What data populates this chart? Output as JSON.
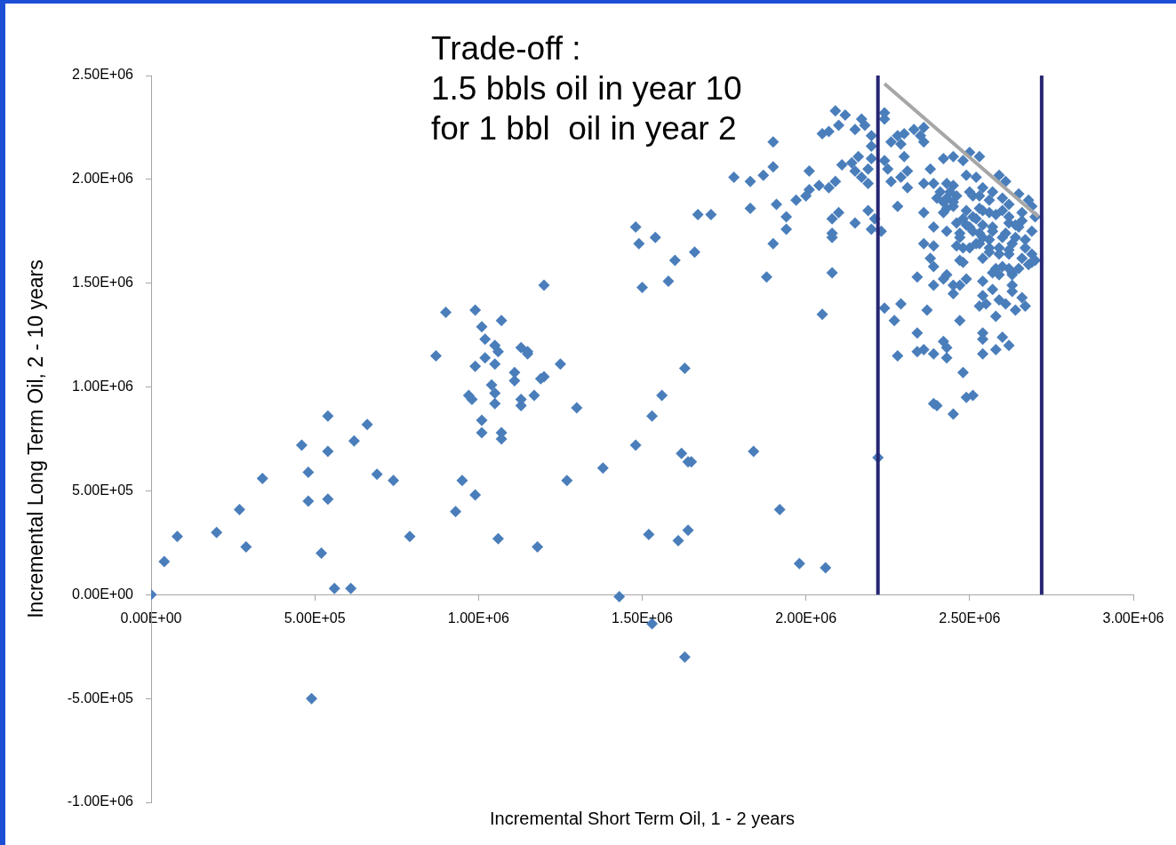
{
  "chart_data": {
    "type": "scatter",
    "title": "Trade-off :\n1.5 bbls oil in year 10\nfor 1 bbl  oil in year 2",
    "xlabel": "Incremental Short Term Oil, 1 - 2 years",
    "ylabel": "Incremental Long Term Oil, 2 - 10 years",
    "xlim": [
      0,
      3000000
    ],
    "ylim": [
      -1000000,
      2500000
    ],
    "xticks": [
      {
        "value": 0,
        "label": "0.00E+00"
      },
      {
        "value": 500000,
        "label": "5.00E+05"
      },
      {
        "value": 1000000,
        "label": "1.00E+06"
      },
      {
        "value": 1500000,
        "label": "1.50E+06"
      },
      {
        "value": 2000000,
        "label": "2.00E+06"
      },
      {
        "value": 2500000,
        "label": "2.50E+06"
      },
      {
        "value": 3000000,
        "label": "3.00E+06"
      }
    ],
    "yticks": [
      {
        "value": -1000000,
        "label": "-1.00E+06"
      },
      {
        "value": -500000,
        "label": "-5.00E+05"
      },
      {
        "value": 0,
        "label": "0.00E+00"
      },
      {
        "value": 500000,
        "label": "5.00E+05"
      },
      {
        "value": 1000000,
        "label": "1.00E+06"
      },
      {
        "value": 1500000,
        "label": "1.50E+06"
      },
      {
        "value": 2000000,
        "label": "2.00E+06"
      },
      {
        "value": 2500000,
        "label": "2.50E+06"
      }
    ],
    "marker": "diamond",
    "series": [
      {
        "color": "#4a7ebb",
        "x": [
          0,
          40000,
          80000,
          200000,
          270000,
          290000,
          340000,
          460000,
          480000,
          480000,
          540000,
          540000,
          540000,
          520000,
          560000,
          610000,
          620000,
          660000,
          690000,
          740000,
          790000,
          490000,
          930000,
          950000,
          990000,
          1060000,
          1180000,
          1480000,
          1490000,
          1540000,
          1670000,
          1710000,
          1660000,
          1600000,
          1580000,
          1500000,
          1200000,
          900000,
          990000,
          1070000,
          1010000,
          1020000,
          1050000,
          1060000,
          1020000,
          1050000,
          990000,
          870000,
          1130000,
          1150000,
          1150000,
          1250000,
          1110000,
          1110000,
          1190000,
          1200000,
          1040000,
          1050000,
          970000,
          980000,
          1050000,
          1130000,
          1130000,
          1170000,
          1300000,
          1010000,
          1010000,
          1070000,
          1070000,
          1630000,
          1560000,
          1530000,
          1480000,
          1380000,
          1270000,
          1620000,
          1640000,
          1650000,
          1840000,
          1520000,
          1610000,
          1640000,
          1430000,
          1530000,
          1630000,
          2090000,
          2120000,
          2100000,
          2170000,
          2180000,
          2150000,
          2050000,
          2070000,
          2200000,
          1900000,
          2200000,
          1900000,
          1780000,
          1830000,
          1870000,
          2010000,
          2110000,
          2140000,
          2160000,
          2150000,
          2190000,
          2170000,
          2190000,
          2200000,
          2040000,
          2090000,
          2070000,
          2010000,
          2000000,
          1970000,
          1830000,
          1910000,
          1940000,
          1940000,
          1900000,
          1880000,
          2080000,
          2100000,
          2150000,
          2190000,
          2200000,
          2080000,
          2080000,
          2080000,
          2050000,
          1920000,
          1980000,
          2060000,
          2220000,
          2240000,
          2240000,
          2330000,
          2360000,
          2350000,
          2360000,
          2300000,
          2280000,
          2290000,
          2260000,
          2300000,
          2240000,
          2250000,
          2310000,
          2290000,
          2260000,
          2310000,
          2280000,
          2380000,
          2360000,
          2390000,
          2420000,
          2450000,
          2480000,
          2500000,
          2530000,
          2490000,
          2590000,
          2610000,
          2650000,
          2680000,
          2700000,
          2430000,
          2450000,
          2410000,
          2430000,
          2460000,
          2500000,
          2530000,
          2560000,
          2600000,
          2620000,
          2660000,
          2690000,
          2360000,
          2420000,
          2450000,
          2480000,
          2510000,
          2540000,
          2580000,
          2620000,
          2650000,
          2690000,
          2390000,
          2430000,
          2470000,
          2500000,
          2530000,
          2570000,
          2600000,
          2630000,
          2670000,
          2360000,
          2390000,
          2480000,
          2520000,
          2560000,
          2590000,
          2620000,
          2660000,
          2380000,
          2470000,
          2540000,
          2700000,
          2230000,
          2210000,
          2480000,
          2390000,
          2340000,
          2390000,
          2430000,
          2420000,
          2450000,
          2490000,
          2450000,
          2470000,
          2540000,
          2570000,
          2540000,
          2530000,
          2550000,
          2590000,
          2610000,
          2630000,
          2630000,
          2660000,
          2670000,
          2640000,
          2580000,
          2290000,
          2240000,
          2370000,
          2270000,
          2470000,
          2340000,
          2420000,
          2430000,
          2540000,
          2540000,
          2600000,
          2620000,
          2280000,
          2340000,
          2360000,
          2390000,
          2430000,
          2540000,
          2580000,
          2480000,
          2390000,
          2400000,
          2490000,
          2510000,
          2450000,
          2580000,
          2620000,
          2650000,
          2680000,
          2590000,
          2630000,
          2520000,
          2540000,
          2570000,
          2510000,
          2450000,
          2430000,
          2490000,
          2530000,
          2560000,
          2600000,
          2620000,
          2660000,
          2520000,
          2540000,
          2570000,
          2510000,
          2540000,
          2560000,
          2610000,
          2640000,
          2670000,
          2620000,
          2590000,
          2560000,
          2470000,
          2460000,
          2500000,
          2600000,
          2690000,
          2570000,
          2630000,
          2490000,
          2460000,
          2420000,
          2400000,
          2640000,
          2690000,
          2530000,
          2440000
        ],
        "values": [
          0,
          160000,
          280000,
          300000,
          410000,
          230000,
          560000,
          720000,
          590000,
          450000,
          860000,
          690000,
          460000,
          200000,
          30000,
          30000,
          740000,
          820000,
          580000,
          550000,
          280000,
          -500000,
          400000,
          550000,
          480000,
          270000,
          230000,
          1770000,
          1690000,
          1720000,
          1830000,
          1830000,
          1650000,
          1610000,
          1510000,
          1480000,
          1490000,
          1360000,
          1370000,
          1320000,
          1290000,
          1230000,
          1200000,
          1170000,
          1140000,
          1110000,
          1100000,
          1150000,
          1190000,
          1170000,
          1160000,
          1110000,
          1070000,
          1030000,
          1040000,
          1050000,
          1010000,
          970000,
          960000,
          940000,
          920000,
          940000,
          910000,
          960000,
          900000,
          840000,
          780000,
          780000,
          750000,
          1090000,
          960000,
          860000,
          720000,
          610000,
          550000,
          680000,
          640000,
          640000,
          690000,
          290000,
          260000,
          310000,
          -10000,
          -140000,
          -300000,
          2330000,
          2310000,
          2260000,
          2290000,
          2260000,
          2240000,
          2220000,
          2230000,
          2210000,
          2180000,
          2160000,
          2060000,
          2010000,
          1990000,
          2020000,
          2040000,
          2070000,
          2080000,
          2110000,
          2040000,
          2050000,
          2010000,
          1980000,
          2100000,
          1970000,
          1990000,
          1960000,
          1950000,
          1920000,
          1900000,
          1860000,
          1880000,
          1820000,
          1760000,
          1690000,
          1530000,
          1810000,
          1840000,
          1790000,
          1850000,
          1760000,
          1740000,
          1720000,
          1550000,
          1350000,
          410000,
          150000,
          130000,
          660000,
          2320000,
          2290000,
          2240000,
          2250000,
          2210000,
          2180000,
          2220000,
          2210000,
          2170000,
          2180000,
          2110000,
          2090000,
          2050000,
          2040000,
          2010000,
          1990000,
          1960000,
          1870000,
          2050000,
          1980000,
          1980000,
          2100000,
          2110000,
          2090000,
          2130000,
          2110000,
          2020000,
          2020000,
          1990000,
          1930000,
          1900000,
          1820000,
          1980000,
          1970000,
          1940000,
          1910000,
          1920000,
          1940000,
          1920000,
          1900000,
          1910000,
          1880000,
          1840000,
          1870000,
          1840000,
          1840000,
          1870000,
          1810000,
          1820000,
          1850000,
          1830000,
          1790000,
          1770000,
          1750000,
          1770000,
          1750000,
          1740000,
          1770000,
          1740000,
          1750000,
          1720000,
          1690000,
          1710000,
          1690000,
          1680000,
          1670000,
          1690000,
          1670000,
          1640000,
          1660000,
          1620000,
          1620000,
          1610000,
          1620000,
          1610000,
          1750000,
          1810000,
          1600000,
          1580000,
          1530000,
          1490000,
          1540000,
          1520000,
          1490000,
          1520000,
          1450000,
          1490000,
          1510000,
          1470000,
          1440000,
          1390000,
          1400000,
          1420000,
          1400000,
          1490000,
          1460000,
          1430000,
          1390000,
          1370000,
          1340000,
          1400000,
          1380000,
          1370000,
          1320000,
          1320000,
          1260000,
          1220000,
          1190000,
          1260000,
          1230000,
          1240000,
          1200000,
          1150000,
          1170000,
          1180000,
          1160000,
          1140000,
          1160000,
          1180000,
          1070000,
          920000,
          910000,
          950000,
          960000,
          870000,
          1570000,
          1570000,
          1570000,
          1590000,
          1540000,
          1540000,
          2010000,
          1960000,
          1940000,
          1920000,
          1890000,
          1860000,
          1850000,
          1860000,
          1840000,
          1850000,
          1820000,
          1800000,
          1810000,
          1780000,
          1770000,
          1750000,
          1720000,
          1710000,
          1740000,
          1720000,
          1670000,
          1640000,
          1670000,
          1650000,
          1720000,
          1680000,
          1670000,
          1580000,
          1600000,
          1550000,
          1550000,
          1780000,
          1790000,
          1890000,
          1910000,
          1780000,
          1640000,
          1690000,
          1940000
        ]
      },
      {
        "type": "line",
        "color": "#a6a6a6",
        "marker": "none",
        "x": [
          2240000,
          2710000
        ],
        "values": [
          2460000,
          1820000
        ]
      },
      {
        "type": "line",
        "color": "#262673",
        "marker": "none",
        "x": [
          2220000,
          2220000
        ],
        "values": [
          0,
          2500000
        ]
      },
      {
        "type": "line",
        "color": "#262673",
        "marker": "none",
        "x": [
          2720000,
          2720000
        ],
        "values": [
          0,
          2500000
        ]
      }
    ]
  }
}
